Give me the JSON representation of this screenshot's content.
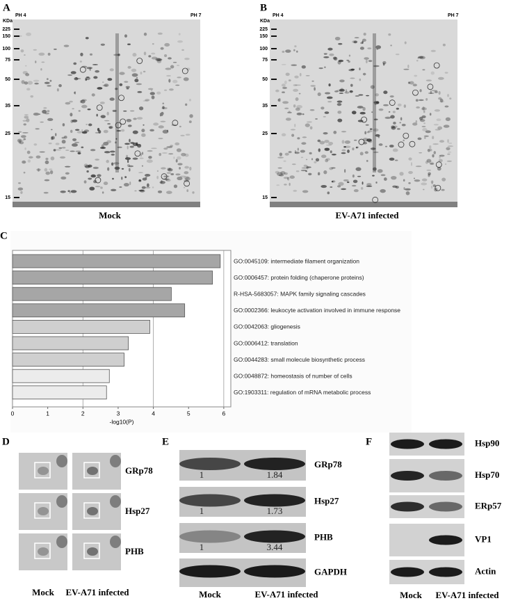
{
  "gels": [
    {
      "label": "A",
      "unit": "KDa",
      "ph_left": "PH 4",
      "ph_right": "PH 7",
      "markers": [
        225,
        150,
        100,
        75,
        50,
        35,
        25,
        15
      ],
      "caption": "Mock"
    },
    {
      "label": "B",
      "unit": "KDa",
      "ph_left": "PH 4",
      "ph_right": "PH 7",
      "markers": [
        225,
        150,
        100,
        75,
        50,
        35,
        25,
        15
      ],
      "caption": "EV-A71 infected"
    }
  ],
  "chart_data": {
    "type": "bar",
    "orientation": "horizontal",
    "panel_label": "C",
    "categories": [
      "GO:0045109: intermediate filament organization",
      "GO:0006457: protein folding (chaperone proteins)",
      "R-HSA-5683057: MAPK family signaling cascades",
      "GO:0002366: leukocyte activation involved in immune response",
      "GO:0042063: gliogenesis",
      "GO:0006412: translation",
      "GO:0044283: small molecule biosynthetic process",
      "GO:0048872: homeostasis of number of cells",
      "GO:1903311: regulation of mRNA metabolic process"
    ],
    "values": [
      5.9,
      5.68,
      4.51,
      4.89,
      3.9,
      3.29,
      3.17,
      2.75,
      2.67
    ],
    "colors": [
      "#a6a6a6",
      "#a6a6a6",
      "#a6a6a6",
      "#a6a6a6",
      "#cfcfcf",
      "#cfcfcf",
      "#cfcfcf",
      "#ececec",
      "#ececec"
    ],
    "xlabel": "-log10(P)",
    "xlim": [
      0,
      6.2
    ],
    "xticks": [
      0,
      1,
      2,
      3,
      4,
      5,
      6
    ],
    "gridlines": [
      2,
      4,
      6
    ]
  },
  "spots": {
    "label": "D",
    "rows": [
      "GRp78",
      "Hsp27",
      "PHB"
    ],
    "columns": [
      "Mock",
      "EV-A71 infected"
    ]
  },
  "blots_e": {
    "label": "E",
    "rows": [
      {
        "name": "GRp78",
        "ratios": [
          1,
          1.84
        ]
      },
      {
        "name": "Hsp27",
        "ratios": [
          1,
          1.73
        ]
      },
      {
        "name": "PHB",
        "ratios": [
          1,
          3.44
        ]
      },
      {
        "name": "GAPDH"
      }
    ],
    "columns": [
      "Mock",
      "EV-A71 infected"
    ]
  },
  "blots_f": {
    "label": "F",
    "rows": [
      "Hsp90",
      "Hsp70",
      "ERp57",
      "VP1",
      "Actin"
    ],
    "columns": [
      "Mock",
      "EV-A71 infected"
    ]
  }
}
